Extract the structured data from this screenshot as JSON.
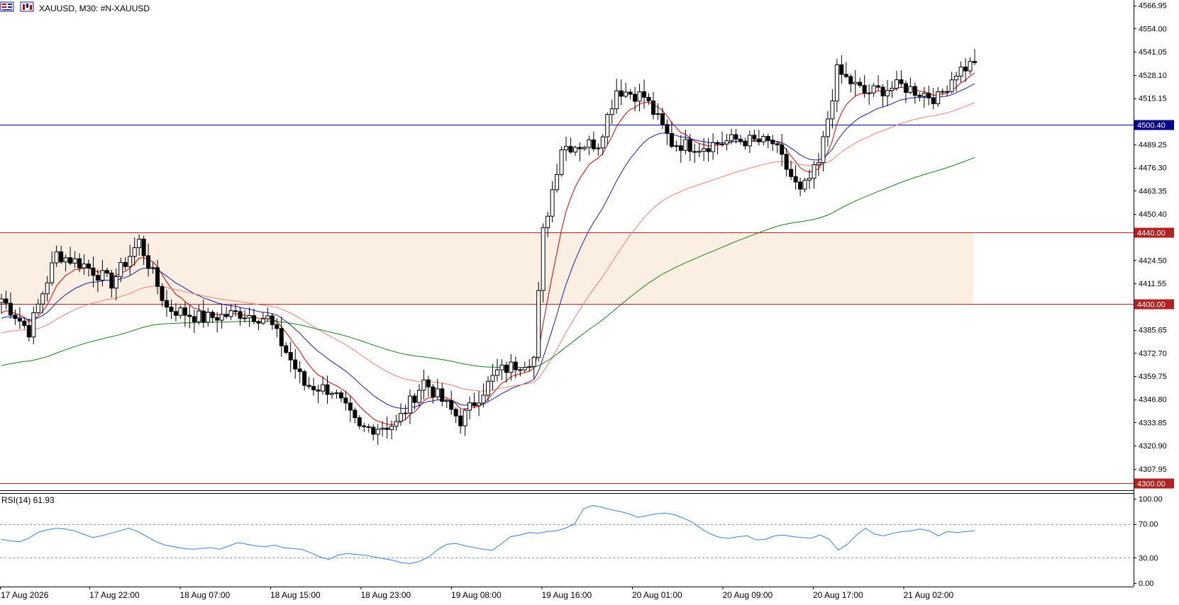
{
  "header": {
    "title": "XAUUSD, M30:  #N-XAUUSD",
    "icons": [
      "bar-chart-icon",
      "candlestick-chart-icon"
    ]
  },
  "price_axis": {
    "ticks": [
      "4566.95",
      "4554.00",
      "4541.05",
      "4528.10",
      "4515.15",
      "4489.25",
      "4476.30",
      "4463.35",
      "4450.40",
      "4424.50",
      "4411.55",
      "4385.65",
      "4372.70",
      "4359.75",
      "4346.80",
      "4333.85",
      "4320.90",
      "4307.95"
    ]
  },
  "levels": [
    {
      "label": "4500.40",
      "value": 4500.4,
      "color": "#00008b"
    },
    {
      "label": "4440.00",
      "value": 4440.0,
      "color": "#b22222"
    },
    {
      "label": "4400.00",
      "value": 4400.0,
      "color": "#b22222"
    },
    {
      "label": "4300.00",
      "value": 4300.0,
      "color": "#b22222"
    }
  ],
  "zone": {
    "from": 4400.0,
    "to": 4440.0,
    "color": "#fbeee3"
  },
  "rsi": {
    "label": "RSI(14) 61.93",
    "ticks": [
      "100.00",
      "70.00",
      "30.00",
      "0.00"
    ],
    "levels": [
      70,
      30
    ]
  },
  "time_axis": {
    "labels": [
      "17 Aug 2026",
      "17 Aug 22:00",
      "18 Aug 07:00",
      "18 Aug 15:00",
      "18 Aug 23:00",
      "19 Aug 08:00",
      "19 Aug 16:00",
      "20 Aug 01:00",
      "20 Aug 09:00",
      "20 Aug 17:00",
      "21 Aug 02:00"
    ]
  },
  "colors": {
    "ma_fast": "#d40000",
    "ma_mid": "#1a1aa6",
    "ma_slow": "#f08070",
    "ma_long": "#1e7a1e",
    "rsi_line": "#3a7fd5",
    "candle": "#000000"
  },
  "chart_data": {
    "type": "candlestick",
    "symbol": "XAUUSD",
    "timeframe": "M30",
    "ylim": [
      4296,
      4570
    ],
    "anchors": [
      {
        "i": 0,
        "v": 4403
      },
      {
        "i": 6,
        "v": 4385
      },
      {
        "i": 12,
        "v": 4428
      },
      {
        "i": 18,
        "v": 4422
      },
      {
        "i": 24,
        "v": 4412
      },
      {
        "i": 30,
        "v": 4435
      },
      {
        "i": 36,
        "v": 4398
      },
      {
        "i": 44,
        "v": 4392
      },
      {
        "i": 52,
        "v": 4395
      },
      {
        "i": 58,
        "v": 4392
      },
      {
        "i": 66,
        "v": 4355
      },
      {
        "i": 72,
        "v": 4352
      },
      {
        "i": 78,
        "v": 4330
      },
      {
        "i": 86,
        "v": 4333
      },
      {
        "i": 92,
        "v": 4357
      },
      {
        "i": 100,
        "v": 4335
      },
      {
        "i": 108,
        "v": 4362
      },
      {
        "i": 116,
        "v": 4370
      },
      {
        "i": 118,
        "v": 4440
      },
      {
        "i": 122,
        "v": 4488
      },
      {
        "i": 130,
        "v": 4490
      },
      {
        "i": 134,
        "v": 4520
      },
      {
        "i": 140,
        "v": 4516
      },
      {
        "i": 146,
        "v": 4490
      },
      {
        "i": 152,
        "v": 4488
      },
      {
        "i": 160,
        "v": 4492
      },
      {
        "i": 168,
        "v": 4490
      },
      {
        "i": 174,
        "v": 4462
      },
      {
        "i": 178,
        "v": 4478
      },
      {
        "i": 182,
        "v": 4530
      },
      {
        "i": 188,
        "v": 4518
      },
      {
        "i": 196,
        "v": 4522
      },
      {
        "i": 204,
        "v": 4515
      },
      {
        "i": 208,
        "v": 4530
      },
      {
        "i": 212,
        "v": 4535
      }
    ],
    "rsi_values": [
      52,
      50,
      49,
      53,
      60,
      63,
      65,
      64,
      62,
      58,
      54,
      56,
      59,
      62,
      65,
      61,
      55,
      49,
      45,
      43,
      41,
      40,
      41,
      42,
      40,
      44,
      48,
      46,
      44,
      43,
      45,
      42,
      41,
      40,
      36,
      31,
      28,
      33,
      35,
      34,
      33,
      31,
      29,
      27,
      24,
      23,
      26,
      31,
      40,
      46,
      47,
      44,
      42,
      40,
      39,
      47,
      55,
      57,
      60,
      59,
      61,
      62,
      65,
      70,
      88,
      92,
      90,
      87,
      85,
      82,
      78,
      80,
      82,
      83,
      81,
      77,
      72,
      64,
      58,
      54,
      53,
      55,
      56,
      51,
      52,
      56,
      57,
      55,
      54,
      53,
      57,
      52,
      39,
      46,
      57,
      65,
      58,
      56,
      59,
      61,
      62,
      64,
      62,
      56,
      61,
      60,
      61,
      62
    ],
    "series": [
      {
        "name": "MA fast",
        "color": "#d40000"
      },
      {
        "name": "MA mid",
        "color": "#1a1aa6"
      },
      {
        "name": "MA slow",
        "color": "#f08070"
      },
      {
        "name": "MA long",
        "color": "#1e7a1e"
      }
    ]
  }
}
